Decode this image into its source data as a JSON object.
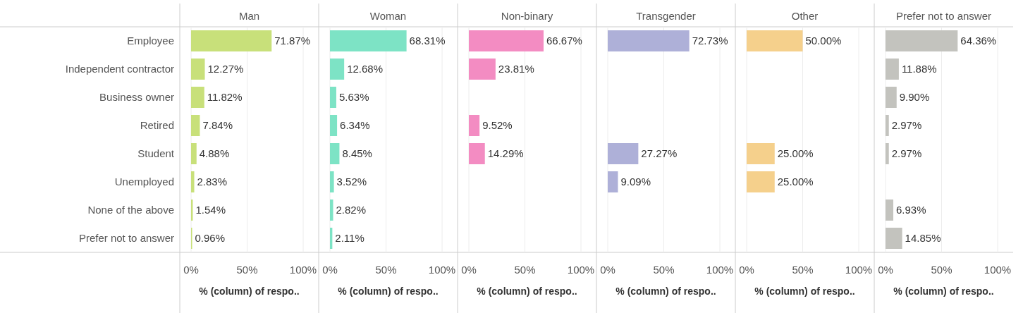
{
  "chart_data": [
    {
      "type": "bar",
      "orientation": "horizontal",
      "title": "Man",
      "xlabel": "% (column) of respo..",
      "categories": [
        "Employee",
        "Independent contractor",
        "Business owner",
        "Retired",
        "Student",
        "Unemployed",
        "None of the above",
        "Prefer not to answer"
      ],
      "values": [
        71.87,
        12.27,
        11.82,
        7.84,
        4.88,
        2.83,
        1.54,
        0.96
      ],
      "value_labels": [
        "71.87%",
        "12.27%",
        "11.82%",
        "7.84%",
        "4.88%",
        "2.83%",
        "1.54%",
        "0.96%"
      ],
      "color": "#c8e07a",
      "xlim": [
        0,
        100
      ],
      "xticks": [
        {
          "value": 0,
          "label": "0%"
        },
        {
          "value": 50,
          "label": "50%"
        },
        {
          "value": 100,
          "label": "100%"
        }
      ],
      "grid": "x"
    },
    {
      "type": "bar",
      "orientation": "horizontal",
      "title": "Woman",
      "xlabel": "% (column) of respo..",
      "categories": [
        null,
        null,
        null,
        null,
        null,
        null,
        null,
        null
      ],
      "values": [
        68.31,
        12.68,
        5.63,
        6.34,
        8.45,
        3.52,
        2.82,
        2.11
      ],
      "value_labels": [
        "68.31%",
        "12.68%",
        "5.63%",
        "6.34%",
        "8.45%",
        "3.52%",
        "2.82%",
        "2.11%"
      ],
      "color": "#7de3c5",
      "xlim": [
        0,
        100
      ],
      "xticks": [
        {
          "value": 0,
          "label": "0%"
        },
        {
          "value": 50,
          "label": "50%"
        },
        {
          "value": 100,
          "label": "100%"
        }
      ],
      "grid": "x",
      "tick_labels": "x"
    },
    {
      "type": "bar",
      "orientation": "horizontal",
      "title": "Non-binary",
      "xlabel": "% (column) of respo..",
      "categories": [
        null,
        null,
        null,
        null,
        null,
        null,
        null,
        null
      ],
      "values": [
        66.67,
        23.81,
        null,
        9.52,
        14.29,
        null,
        null,
        null
      ],
      "value_labels": [
        "66.67%",
        "23.81%",
        null,
        "9.52%",
        "14.29%",
        null,
        null,
        null
      ],
      "color": "#f38cc2",
      "xlim": [
        0,
        100
      ],
      "xticks": [
        {
          "value": 0,
          "label": "0%"
        },
        {
          "value": 50,
          "label": "50%"
        },
        {
          "value": 100,
          "label": "100%"
        }
      ],
      "grid": "x",
      "tick_labels": "x"
    },
    {
      "type": "bar",
      "orientation": "horizontal",
      "title": "Transgender",
      "xlabel": "% (column) of respo..",
      "categories": [
        null,
        null,
        null,
        null,
        null,
        null,
        null,
        null
      ],
      "values": [
        72.73,
        null,
        null,
        null,
        27.27,
        9.09,
        null,
        null
      ],
      "value_labels": [
        "72.73%",
        null,
        null,
        null,
        "27.27%",
        "9.09%",
        null,
        null
      ],
      "color": "#aeb0d8",
      "xlim": [
        0,
        100
      ],
      "xticks": [
        {
          "value": 0,
          "label": "0%"
        },
        {
          "value": 50,
          "label": "50%"
        },
        {
          "value": 100,
          "label": "100%"
        }
      ],
      "grid": "x",
      "tick_labels": "x"
    },
    {
      "type": "bar",
      "orientation": "horizontal",
      "title": "Other",
      "xlabel": "% (column) of respo..",
      "categories": [
        null,
        null,
        null,
        null,
        null,
        null,
        null,
        null
      ],
      "values": [
        50.0,
        null,
        null,
        null,
        25.0,
        25.0,
        null,
        null
      ],
      "value_labels": [
        "50.00%",
        null,
        null,
        null,
        "25.00%",
        "25.00%",
        null,
        null
      ],
      "color": "#f5d08c",
      "xlim": [
        0,
        100
      ],
      "xticks": [
        {
          "value": 0,
          "label": "0%"
        },
        {
          "value": 50,
          "label": "50%"
        },
        {
          "value": 100,
          "label": "100%"
        }
      ],
      "grid": "x",
      "tick_labels": "x"
    },
    {
      "type": "bar",
      "orientation": "horizontal",
      "title": "Prefer not to answer",
      "xlabel": "% (column) of respo..",
      "categories": [
        null,
        null,
        null,
        null,
        null,
        null,
        null,
        null
      ],
      "values": [
        64.36,
        11.88,
        9.9,
        2.97,
        2.97,
        null,
        6.93,
        14.85
      ],
      "value_labels": [
        "64.36%",
        "11.88%",
        "9.90%",
        "2.97%",
        "2.97%",
        null,
        "6.93%",
        "14.85%"
      ],
      "color": "#c3c3be",
      "xlim": [
        0,
        100
      ],
      "xticks": [
        {
          "value": 0,
          "label": "0%"
        },
        {
          "value": 50,
          "label": "50%"
        },
        {
          "value": 100,
          "label": "100%"
        }
      ],
      "grid": "x",
      "tick_labels": "x"
    }
  ]
}
